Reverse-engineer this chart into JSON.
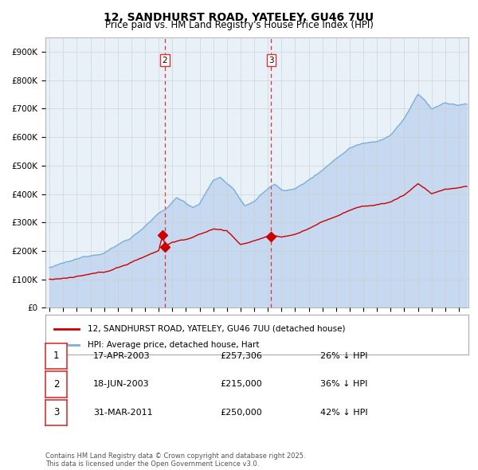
{
  "title_line1": "12, SANDHURST ROAD, YATELEY, GU46 7UU",
  "title_line2": "Price paid vs. HM Land Registry's House Price Index (HPI)",
  "legend_line1": "12, SANDHURST ROAD, YATELEY, GU46 7UU (detached house)",
  "legend_line2": "HPI: Average price, detached house, Hart",
  "transactions": [
    {
      "num": 1,
      "date_label": "17-APR-2003",
      "price_label": "£257,306",
      "hpi_label": "26% ↓ HPI",
      "date_x": 2003.29,
      "price": 257306
    },
    {
      "num": 2,
      "date_label": "18-JUN-2003",
      "price_label": "£215,000",
      "hpi_label": "36% ↓ HPI",
      "date_x": 2003.46,
      "price": 215000
    },
    {
      "num": 3,
      "date_label": "31-MAR-2011",
      "price_label": "£250,000",
      "hpi_label": "42% ↓ HPI",
      "date_x": 2011.25,
      "price": 250000
    }
  ],
  "hpi_fill_color": "#c6d9f0",
  "hpi_line_color": "#7ab0d8",
  "price_color": "#cc0000",
  "vline_color": "#dd3333",
  "fig_bg_color": "#ffffff",
  "plot_bg_color": "#e8f0f8",
  "grid_color": "#cccccc",
  "footer_text": "Contains HM Land Registry data © Crown copyright and database right 2025.\nThis data is licensed under the Open Government Licence v3.0.",
  "xlim": [
    1994.7,
    2025.7
  ],
  "ylim": [
    0,
    950000
  ],
  "yticks": [
    0,
    100000,
    200000,
    300000,
    400000,
    500000,
    600000,
    700000,
    800000,
    900000
  ],
  "ytick_labels": [
    "£0",
    "£100K",
    "£200K",
    "£300K",
    "£400K",
    "£500K",
    "£600K",
    "£700K",
    "£800K",
    "£900K"
  ]
}
